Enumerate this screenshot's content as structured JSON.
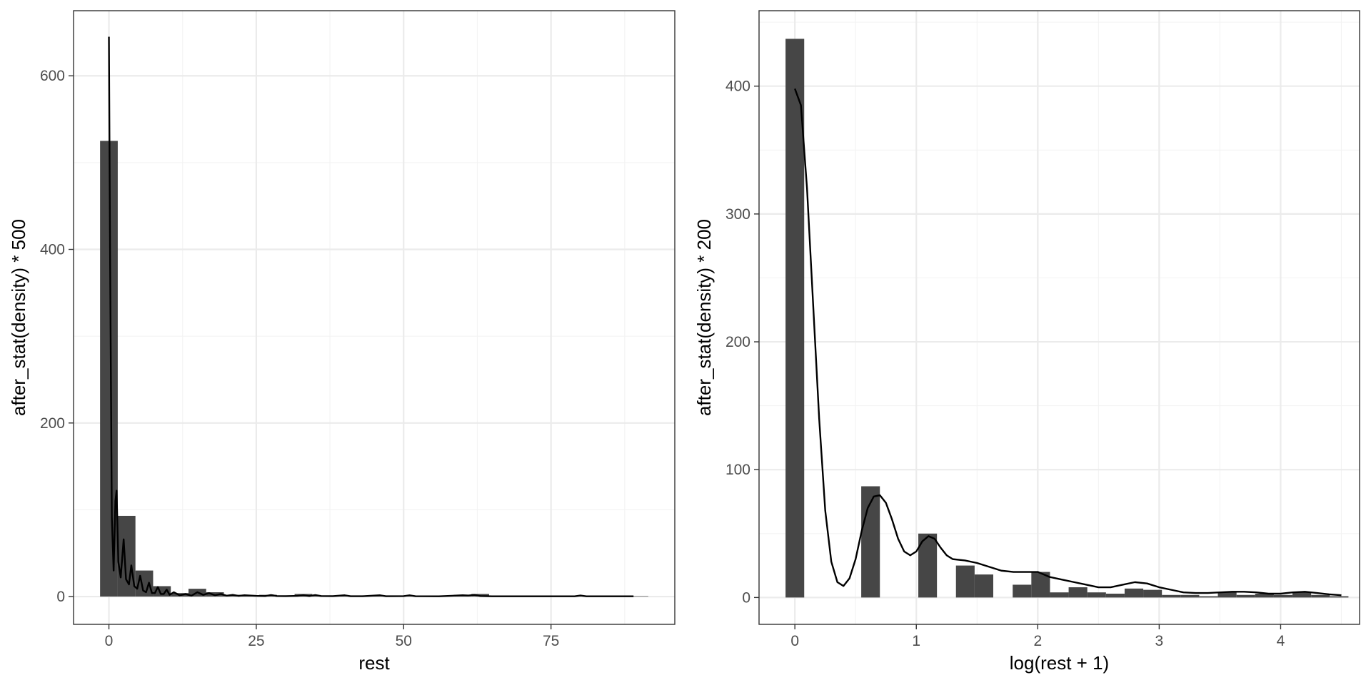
{
  "chart_data": [
    {
      "type": "histogram",
      "xlabel": "rest",
      "ylabel": "after_stat(density) * 500",
      "xlim": [
        -6,
        96
      ],
      "ylim": [
        -32,
        675
      ],
      "xticks": [
        0,
        25,
        50,
        75
      ],
      "yticks": [
        0,
        200,
        400,
        600
      ],
      "grid": true,
      "bar_color": "#464646",
      "bars": [
        {
          "x0": -1.5,
          "x1": 1.5,
          "value": 525
        },
        {
          "x0": 1.5,
          "x1": 4.5,
          "value": 93
        },
        {
          "x0": 4.5,
          "x1": 7.5,
          "value": 30
        },
        {
          "x0": 7.5,
          "x1": 10.5,
          "value": 12
        },
        {
          "x0": 10.5,
          "x1": 13.5,
          "value": 4
        },
        {
          "x0": 13.5,
          "x1": 16.5,
          "value": 9
        },
        {
          "x0": 16.5,
          "x1": 19.5,
          "value": 5
        },
        {
          "x0": 19.5,
          "x1": 22.5,
          "value": 2
        },
        {
          "x0": 22.5,
          "x1": 25.5,
          "value": 1
        },
        {
          "x0": 25.5,
          "x1": 28.5,
          "value": 2
        },
        {
          "x0": 28.5,
          "x1": 31.5,
          "value": 1
        },
        {
          "x0": 31.5,
          "x1": 34.5,
          "value": 3
        },
        {
          "x0": 34.5,
          "x1": 37.5,
          "value": 1
        },
        {
          "x0": 37.5,
          "x1": 40.5,
          "value": 1
        },
        {
          "x0": 40.5,
          "x1": 43.5,
          "value": 0.5
        },
        {
          "x0": 43.5,
          "x1": 46.5,
          "value": 1
        },
        {
          "x0": 46.5,
          "x1": 49.5,
          "value": 0.5
        },
        {
          "x0": 49.5,
          "x1": 52.5,
          "value": 1
        },
        {
          "x0": 52.5,
          "x1": 55.5,
          "value": 0.5
        },
        {
          "x0": 55.5,
          "x1": 58.5,
          "value": 0.5
        },
        {
          "x0": 58.5,
          "x1": 61.5,
          "value": 2
        },
        {
          "x0": 61.5,
          "x1": 64.5,
          "value": 3
        },
        {
          "x0": 64.5,
          "x1": 67.5,
          "value": 0.5
        },
        {
          "x0": 67.5,
          "x1": 70.5,
          "value": 0.5
        },
        {
          "x0": 70.5,
          "x1": 73.5,
          "value": 0.5
        },
        {
          "x0": 73.5,
          "x1": 76.5,
          "value": 0.5
        },
        {
          "x0": 76.5,
          "x1": 79.5,
          "value": 0.5
        },
        {
          "x0": 79.5,
          "x1": 82.5,
          "value": 1
        },
        {
          "x0": 82.5,
          "x1": 85.5,
          "value": 0.5
        },
        {
          "x0": 85.5,
          "x1": 88.5,
          "value": 0.5
        },
        {
          "x0": 88.5,
          "x1": 91.5,
          "value": 0.5
        }
      ],
      "density_curve": [
        [
          0,
          645
        ],
        [
          0.2,
          390
        ],
        [
          0.5,
          90
        ],
        [
          0.8,
          30
        ],
        [
          1.1,
          110
        ],
        [
          1.3,
          122
        ],
        [
          1.6,
          40
        ],
        [
          2.0,
          22
        ],
        [
          2.5,
          66
        ],
        [
          2.9,
          20
        ],
        [
          3.4,
          14
        ],
        [
          3.8,
          36
        ],
        [
          4.3,
          12
        ],
        [
          4.8,
          9
        ],
        [
          5.3,
          24
        ],
        [
          5.8,
          7
        ],
        [
          6.3,
          5
        ],
        [
          6.8,
          16
        ],
        [
          7.3,
          4
        ],
        [
          7.8,
          4
        ],
        [
          8.3,
          11
        ],
        [
          8.8,
          3
        ],
        [
          9.3,
          3
        ],
        [
          9.8,
          8
        ],
        [
          10.3,
          2
        ],
        [
          11,
          5
        ],
        [
          12,
          1.5
        ],
        [
          13,
          3
        ],
        [
          14,
          1
        ],
        [
          15,
          5
        ],
        [
          16,
          2
        ],
        [
          17,
          4
        ],
        [
          18,
          1.5
        ],
        [
          19,
          3
        ],
        [
          20,
          1
        ],
        [
          21,
          2
        ],
        [
          22,
          0.8
        ],
        [
          23,
          1.5
        ],
        [
          25,
          0.8
        ],
        [
          26.5,
          0.6
        ],
        [
          27.5,
          1.8
        ],
        [
          28.5,
          0.6
        ],
        [
          30,
          0.5
        ],
        [
          32,
          0.8
        ],
        [
          33,
          1.5
        ],
        [
          34,
          0.6
        ],
        [
          35,
          1.8
        ],
        [
          36,
          0.6
        ],
        [
          38,
          0.5
        ],
        [
          40,
          1.5
        ],
        [
          41,
          0.4
        ],
        [
          43,
          0.4
        ],
        [
          46,
          1.5
        ],
        [
          47,
          0.4
        ],
        [
          50,
          0.5
        ],
        [
          51,
          1.5
        ],
        [
          52,
          0.4
        ],
        [
          56,
          0.3
        ],
        [
          60,
          1.5
        ],
        [
          61,
          1.2
        ],
        [
          62,
          2
        ],
        [
          63,
          0.6
        ],
        [
          65,
          0.3
        ],
        [
          70,
          0.3
        ],
        [
          75,
          0.3
        ],
        [
          79,
          0.3
        ],
        [
          80,
          1.2
        ],
        [
          81,
          0.3
        ],
        [
          85,
          0.3
        ],
        [
          89,
          0.3
        ]
      ]
    },
    {
      "type": "histogram",
      "xlabel": "log(rest + 1)",
      "ylabel": "after_stat(density) * 200",
      "xlim": [
        -0.295,
        4.65
      ],
      "ylim": [
        -21,
        459
      ],
      "xticks": [
        0,
        1,
        2,
        3,
        4
      ],
      "yticks": [
        0,
        100,
        200,
        300,
        400
      ],
      "grid": true,
      "bar_color": "#464646",
      "bars": [
        {
          "x0": -0.0768,
          "x1": 0.0768,
          "value": 437
        },
        {
          "x0": 0.5464,
          "x1": 0.7,
          "value": 87
        },
        {
          "x0": 1.0164,
          "x1": 1.17,
          "value": 50
        },
        {
          "x0": 1.3264,
          "x1": 1.48,
          "value": 25
        },
        {
          "x0": 1.48,
          "x1": 1.6336,
          "value": 18
        },
        {
          "x0": 1.7936,
          "x1": 1.9472,
          "value": 10
        },
        {
          "x0": 1.9472,
          "x1": 2.1008,
          "value": 20
        },
        {
          "x0": 2.1008,
          "x1": 2.2544,
          "value": 4
        },
        {
          "x0": 2.2544,
          "x1": 2.408,
          "value": 8
        },
        {
          "x0": 2.408,
          "x1": 2.5616,
          "value": 4
        },
        {
          "x0": 2.5616,
          "x1": 2.7152,
          "value": 3
        },
        {
          "x0": 2.7152,
          "x1": 2.8688,
          "value": 7
        },
        {
          "x0": 2.8688,
          "x1": 3.0224,
          "value": 6
        },
        {
          "x0": 3.0224,
          "x1": 3.176,
          "value": 2
        },
        {
          "x0": 3.176,
          "x1": 3.3296,
          "value": 2
        },
        {
          "x0": 3.3296,
          "x1": 3.4832,
          "value": 1
        },
        {
          "x0": 3.4832,
          "x1": 3.6368,
          "value": 4
        },
        {
          "x0": 3.6368,
          "x1": 3.7904,
          "value": 2
        },
        {
          "x0": 3.7904,
          "x1": 3.944,
          "value": 3
        },
        {
          "x0": 3.944,
          "x1": 4.0976,
          "value": 2
        },
        {
          "x0": 4.0976,
          "x1": 4.2512,
          "value": 4
        },
        {
          "x0": 4.2512,
          "x1": 4.4048,
          "value": 2
        },
        {
          "x0": 4.4048,
          "x1": 4.5584,
          "value": 1
        }
      ],
      "density_curve": [
        [
          0,
          398
        ],
        [
          0.05,
          385
        ],
        [
          0.1,
          320
        ],
        [
          0.15,
          230
        ],
        [
          0.2,
          140
        ],
        [
          0.25,
          68
        ],
        [
          0.3,
          28
        ],
        [
          0.35,
          12
        ],
        [
          0.4,
          9
        ],
        [
          0.45,
          15
        ],
        [
          0.5,
          30
        ],
        [
          0.55,
          52
        ],
        [
          0.6,
          70
        ],
        [
          0.65,
          79
        ],
        [
          0.7,
          80
        ],
        [
          0.75,
          74
        ],
        [
          0.8,
          61
        ],
        [
          0.85,
          46
        ],
        [
          0.9,
          36
        ],
        [
          0.95,
          33
        ],
        [
          1.0,
          36
        ],
        [
          1.05,
          44
        ],
        [
          1.1,
          48
        ],
        [
          1.15,
          46
        ],
        [
          1.2,
          39
        ],
        [
          1.25,
          33
        ],
        [
          1.3,
          30
        ],
        [
          1.4,
          29
        ],
        [
          1.5,
          27
        ],
        [
          1.6,
          24
        ],
        [
          1.7,
          21
        ],
        [
          1.8,
          20
        ],
        [
          1.9,
          20
        ],
        [
          2.0,
          20
        ],
        [
          2.1,
          16
        ],
        [
          2.2,
          14
        ],
        [
          2.3,
          12
        ],
        [
          2.4,
          10
        ],
        [
          2.5,
          8
        ],
        [
          2.6,
          8
        ],
        [
          2.7,
          10
        ],
        [
          2.8,
          12
        ],
        [
          2.9,
          11
        ],
        [
          3.0,
          8
        ],
        [
          3.1,
          6
        ],
        [
          3.2,
          4
        ],
        [
          3.3,
          3.5
        ],
        [
          3.4,
          3.5
        ],
        [
          3.5,
          4
        ],
        [
          3.6,
          4.5
        ],
        [
          3.7,
          4.5
        ],
        [
          3.8,
          4
        ],
        [
          3.9,
          3
        ],
        [
          4.0,
          3
        ],
        [
          4.1,
          4
        ],
        [
          4.2,
          4.5
        ],
        [
          4.3,
          3.5
        ],
        [
          4.4,
          2.5
        ],
        [
          4.5,
          1.8
        ]
      ]
    }
  ]
}
